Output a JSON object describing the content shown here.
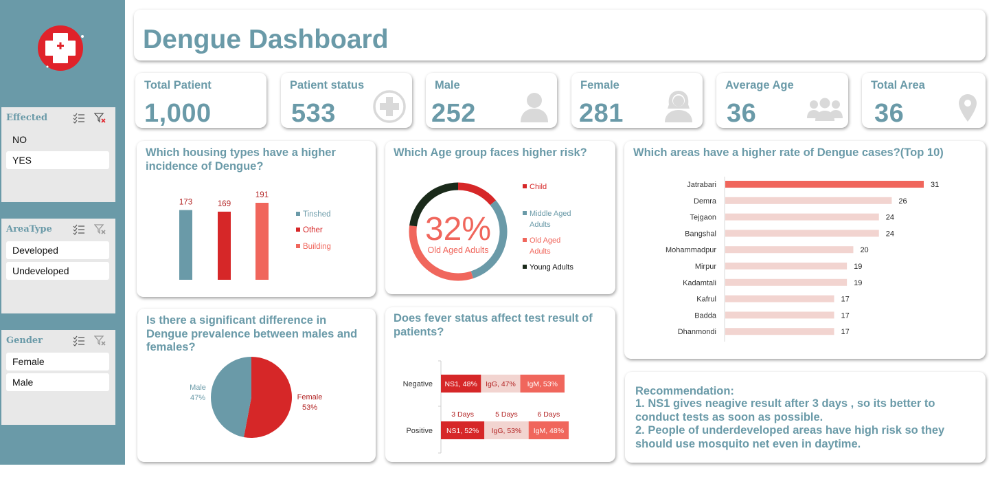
{
  "colors": {
    "teal": "#6a9aa8",
    "red": "#d62728",
    "salmon": "#f0665c",
    "light_pink": "#f2d4d0",
    "dark": "#1a2a1a",
    "icon_grey": "#d9d9d9"
  },
  "header": {
    "title": "Dengue Dashboard"
  },
  "slicers": {
    "effected": {
      "title": "Effected",
      "items": [
        "NO",
        "YES"
      ]
    },
    "areatype": {
      "title": "AreaType",
      "items": [
        "Developed",
        "Undeveloped"
      ]
    },
    "gender": {
      "title": "Gender",
      "items": [
        "Female",
        "Male"
      ]
    }
  },
  "kpis": [
    {
      "label": "Total Patient",
      "value": "1,000",
      "icon": "none"
    },
    {
      "label": "Patient status",
      "value": "533",
      "icon": "medical-cross-icon"
    },
    {
      "label": "Male",
      "value": "252",
      "icon": "male-user-icon"
    },
    {
      "label": "Female",
      "value": "281",
      "icon": "female-user-icon"
    },
    {
      "label": "Average Age",
      "value": "36",
      "icon": "group-icon"
    },
    {
      "label": "Total Area",
      "value": "36",
      "icon": "map-pin-icon"
    }
  ],
  "questions": {
    "housing": "Which housing types have a higher incidence of Dengue?",
    "age": "Which Age group faces higher risk?",
    "areas": "Which areas have a higher rate of Dengue cases?(Top 10)",
    "gender": "Is there a significant difference in Dengue prevalence between males and females?",
    "fever": "Does fever status affect test result of patients?"
  },
  "recommendation": {
    "title": "Recommendation:",
    "lines": [
      "1. NS1 gives neagive result after 3 days , so its better to conduct tests as soon as possible.",
      "2. People of underdeveloped areas have high risk so they should use mosquito net even in daytime."
    ]
  },
  "chart_data": [
    {
      "id": "housing",
      "type": "bar",
      "title": "Which housing types have a higher incidence of Dengue?",
      "categories": [
        "Tinshed",
        "Other",
        "Building"
      ],
      "values": [
        173,
        169,
        191
      ],
      "colors": [
        "#6a9aa8",
        "#d62728",
        "#f0665c"
      ],
      "legend": "right",
      "ylim": [
        0,
        200
      ]
    },
    {
      "id": "age",
      "type": "pie",
      "subtype": "donut",
      "title": "Which Age group faces higher risk?",
      "center_value": "32%",
      "center_label": "Old Aged Adults",
      "slices": [
        {
          "name": "Child",
          "value": 14,
          "color": "#d62728"
        },
        {
          "name": "Middle Aged Adults",
          "value": 31,
          "color": "#6a9aa8"
        },
        {
          "name": "Old Aged Adults",
          "value": 32,
          "color": "#f0665c"
        },
        {
          "name": "Young Adults",
          "value": 23,
          "color": "#1a2a1a"
        }
      ],
      "legend_labels": [
        "Child",
        "Middle Aged",
        "Adults",
        "Old Aged",
        "Adults",
        "Young Adults"
      ],
      "legend": "right"
    },
    {
      "id": "areas",
      "type": "bar",
      "orientation": "horizontal",
      "title": "Which areas have a higher rate of Dengue cases?(Top 10)",
      "categories": [
        "Jatrabari",
        "Demra",
        "Tejgaon",
        "Bangshal",
        "Mohammadpur",
        "Mirpur",
        "Kadamtali",
        "Kafrul",
        "Badda",
        "Dhanmondi"
      ],
      "values": [
        31,
        26,
        24,
        24,
        20,
        19,
        19,
        17,
        17,
        17
      ],
      "xlim": [
        0,
        31
      ]
    },
    {
      "id": "gender",
      "type": "pie",
      "title": "Is there a significant difference in Dengue prevalence between males and females?",
      "slices": [
        {
          "name": "Male",
          "value": 47,
          "label": "47%",
          "color": "#6a9aa8"
        },
        {
          "name": "Female",
          "value": 53,
          "label": "53%",
          "color": "#d62728"
        }
      ]
    },
    {
      "id": "fever",
      "type": "bar",
      "orientation": "horizontal",
      "stacked": true,
      "title": "Does fever status affect test result of patients?",
      "categories": [
        "Negative",
        "Positive"
      ],
      "series": [
        {
          "name": "NS1",
          "values": [
            48,
            52
          ],
          "labels": [
            "NS1, 48%",
            "NS1, 52%"
          ],
          "color": "#d62728"
        },
        {
          "name": "IgG",
          "values": [
            47,
            53
          ],
          "labels": [
            "IgG, 47%",
            "IgG, 53%"
          ],
          "color": "#f2d4d0"
        },
        {
          "name": "IgM",
          "values": [
            53,
            48
          ],
          "labels": [
            "IgM, 53%",
            "IgM, 48%"
          ],
          "color": "#f0665c"
        }
      ],
      "column_annotations": [
        "3 Days",
        "5 Days",
        "6 Days"
      ]
    }
  ]
}
